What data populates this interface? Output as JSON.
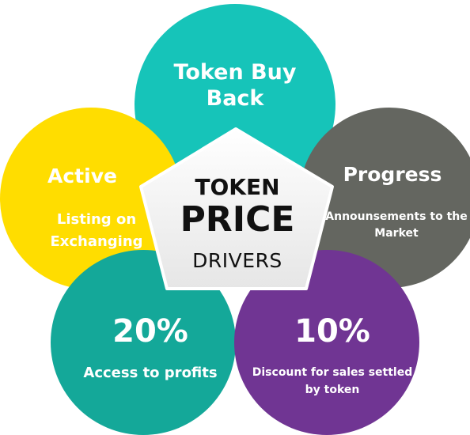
{
  "center": {
    "line1": "TOKEN",
    "line2": "PRICE",
    "line3": "DRIVERS"
  },
  "drivers": {
    "top": {
      "heading": "Token Buy Back",
      "color": "#16c4b9"
    },
    "right": {
      "heading": "Progress",
      "sub": "Announsements to the Market",
      "color": "#646660"
    },
    "left": {
      "heading": "Active",
      "sub": "Listing on Exchanging",
      "color": "#ffdd00"
    },
    "bottom_left": {
      "heading": "20%",
      "sub": "Access to profits",
      "color": "#14a899"
    },
    "bottom_right": {
      "heading": "10%",
      "sub": "Discount for sales settled by token",
      "color": "#703593"
    }
  }
}
